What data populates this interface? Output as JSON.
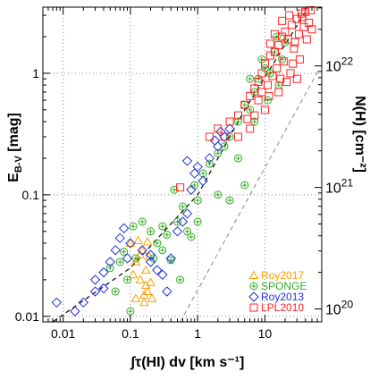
{
  "chart_data": {
    "type": "scatter",
    "xlabel": "∫τ(HI) dv [km s⁻¹]",
    "ylabel": "E_B-V [mag]",
    "ylabel_main": "E",
    "ylabel_sub": "B-V",
    "ylabel_unit": " [mag]",
    "y2label": "N(H) [cm⁻²]",
    "x_scale": "log",
    "y_scale": "log",
    "xlim": [
      0.005,
      70
    ],
    "ylim": [
      0.009,
      3.5
    ],
    "grid": true,
    "legend_placement": "lower-right",
    "x_ticks": [
      {
        "value": 0.01,
        "label": "0.01"
      },
      {
        "value": 0.1,
        "label": "0.1"
      },
      {
        "value": 1,
        "label": "1"
      },
      {
        "value": 10,
        "label": "10"
      }
    ],
    "y_ticks": [
      {
        "value": 0.01,
        "label": "0.01"
      },
      {
        "value": 0.1,
        "label": "0.1"
      },
      {
        "value": 1,
        "label": "1"
      }
    ],
    "y2_ticks": [
      {
        "value": 0.0115,
        "base": "10",
        "exp": "20"
      },
      {
        "value": 0.115,
        "base": "10",
        "exp": "21"
      },
      {
        "value": 1.15,
        "base": "10",
        "exp": "22"
      }
    ],
    "fit_lines": [
      {
        "style": "black-dashed",
        "points": [
          [
            0.007,
            0.009
          ],
          [
            0.1,
            0.025
          ],
          [
            1,
            0.1
          ],
          [
            5,
            0.5
          ],
          [
            40,
            3.2
          ]
        ]
      },
      {
        "style": "gray-dashed",
        "points": [
          [
            0.55,
            0.009
          ],
          [
            65,
            1.1
          ]
        ]
      }
    ],
    "series": [
      {
        "name": "Roy2017",
        "color": "#ff9f00",
        "marker": "triangle",
        "points": [
          [
            0.1,
            0.04
          ],
          [
            0.12,
            0.028
          ],
          [
            0.13,
            0.042
          ],
          [
            0.14,
            0.02
          ],
          [
            0.15,
            0.035
          ],
          [
            0.16,
            0.015
          ],
          [
            0.17,
            0.024
          ],
          [
            0.18,
            0.041
          ],
          [
            0.19,
            0.031
          ],
          [
            0.12,
            0.014
          ],
          [
            0.16,
            0.013
          ],
          [
            0.2,
            0.019
          ],
          [
            0.18,
            0.016
          ],
          [
            0.14,
            0.032
          ],
          [
            0.11,
            0.022
          ],
          [
            0.21,
            0.014
          ],
          [
            0.17,
            0.018
          ]
        ]
      },
      {
        "name": "SPONGE",
        "color": "#33aa22",
        "marker": "circle-plus",
        "points": [
          [
            0.05,
            0.025
          ],
          [
            0.07,
            0.028
          ],
          [
            0.09,
            0.02
          ],
          [
            0.11,
            0.055
          ],
          [
            0.12,
            0.03
          ],
          [
            0.1,
            0.011
          ],
          [
            0.25,
            0.04
          ],
          [
            0.3,
            0.055
          ],
          [
            0.3,
            0.035
          ],
          [
            0.4,
            0.029
          ],
          [
            0.5,
            0.06
          ],
          [
            0.6,
            0.08
          ],
          [
            0.7,
            0.05
          ],
          [
            0.8,
            0.045
          ],
          [
            0.9,
            0.12
          ],
          [
            1.0,
            0.09
          ],
          [
            1.0,
            0.06
          ],
          [
            1.2,
            0.15
          ],
          [
            1.5,
            0.18
          ],
          [
            2.0,
            0.22
          ],
          [
            2.5,
            0.25
          ],
          [
            3.0,
            0.3
          ],
          [
            4.0,
            0.4
          ],
          [
            5.0,
            0.55
          ],
          [
            6.0,
            0.5
          ],
          [
            7.0,
            0.7
          ],
          [
            8.0,
            0.9
          ],
          [
            10.0,
            1.1
          ],
          [
            12.0,
            1.0
          ],
          [
            14.0,
            1.5
          ],
          [
            16.0,
            0.8
          ],
          [
            18.0,
            1.3
          ],
          [
            20.0,
            1.8
          ],
          [
            5.0,
            0.12
          ],
          [
            3.0,
            0.09
          ],
          [
            9.0,
            1.3
          ],
          [
            11.0,
            0.6
          ],
          [
            4.0,
            0.2
          ],
          [
            2.0,
            0.1
          ],
          [
            0.55,
            0.02
          ],
          [
            0.15,
            0.06
          ],
          [
            0.2,
            0.05
          ],
          [
            0.22,
            0.03
          ],
          [
            0.35,
            0.047
          ],
          [
            0.06,
            0.016
          ],
          [
            0.08,
            0.034
          ],
          [
            15.0,
            2.0
          ],
          [
            7.0,
            0.4
          ],
          [
            0.45,
            0.11
          ],
          [
            6.0,
            0.9
          ]
        ]
      },
      {
        "name": "Roy2013",
        "color": "#2233dd",
        "marker": "diamond",
        "points": [
          [
            0.008,
            0.013
          ],
          [
            0.015,
            0.011
          ],
          [
            0.02,
            0.013
          ],
          [
            0.03,
            0.016
          ],
          [
            0.04,
            0.023
          ],
          [
            0.05,
            0.028
          ],
          [
            0.06,
            0.035
          ],
          [
            0.07,
            0.044
          ],
          [
            0.08,
            0.053
          ],
          [
            0.09,
            0.03
          ],
          [
            0.1,
            0.04
          ],
          [
            0.2,
            0.028
          ],
          [
            0.25,
            0.024
          ],
          [
            0.3,
            0.022
          ],
          [
            0.4,
            0.03
          ],
          [
            0.5,
            0.05
          ],
          [
            0.6,
            0.06
          ],
          [
            0.7,
            0.07
          ],
          [
            0.8,
            0.11
          ],
          [
            0.9,
            0.15
          ],
          [
            1.0,
            0.17
          ],
          [
            1.2,
            0.13
          ],
          [
            1.5,
            0.2
          ],
          [
            2.0,
            0.25
          ],
          [
            2.5,
            0.3
          ],
          [
            3.0,
            0.35
          ],
          [
            0.15,
            0.035
          ],
          [
            0.03,
            0.02
          ],
          [
            0.04,
            0.017
          ],
          [
            0.2,
            0.032
          ],
          [
            1.8,
            0.28
          ],
          [
            0.7,
            0.19
          ],
          [
            0.35,
            0.016
          ],
          [
            2.2,
            0.33
          ]
        ]
      },
      {
        "name": "LPL2010",
        "color": "#ff2222",
        "marker": "square",
        "points": [
          [
            1.5,
            0.3
          ],
          [
            2.0,
            0.35
          ],
          [
            3.0,
            0.4
          ],
          [
            4.0,
            0.45
          ],
          [
            5.0,
            0.55
          ],
          [
            6.0,
            0.65
          ],
          [
            7.0,
            0.75
          ],
          [
            8.0,
            0.85
          ],
          [
            9.0,
            1.0
          ],
          [
            10.0,
            1.2
          ],
          [
            12.0,
            1.4
          ],
          [
            14.0,
            1.5
          ],
          [
            16.0,
            1.7
          ],
          [
            18.0,
            2.0
          ],
          [
            20.0,
            2.2
          ],
          [
            25.0,
            2.5
          ],
          [
            30.0,
            2.8
          ],
          [
            35.0,
            3.1
          ],
          [
            40.0,
            3.2
          ],
          [
            45.0,
            2.6
          ],
          [
            50.0,
            2.3
          ],
          [
            22.0,
            1.9
          ],
          [
            27.0,
            1.6
          ],
          [
            33.0,
            1.3
          ],
          [
            11.0,
            0.8
          ],
          [
            13.0,
            0.95
          ],
          [
            15.0,
            1.1
          ],
          [
            17.0,
            0.9
          ],
          [
            19.0,
            1.25
          ],
          [
            9.0,
            0.7
          ],
          [
            8.0,
            0.6
          ],
          [
            7.0,
            0.45
          ],
          [
            6.0,
            0.35
          ],
          [
            10.0,
            0.5
          ],
          [
            24.0,
            1.0
          ],
          [
            28.0,
            1.8
          ],
          [
            32.0,
            2.1
          ],
          [
            38.0,
            2.4
          ],
          [
            42.0,
            1.9
          ],
          [
            16.0,
            0.7
          ],
          [
            21.0,
            0.85
          ],
          [
            26.0,
            1.2
          ],
          [
            30.0,
            0.9
          ],
          [
            12.0,
            1.75
          ],
          [
            14.0,
            2.1
          ],
          [
            18.0,
            2.7
          ],
          [
            23.0,
            3.0
          ],
          [
            0.55,
            0.115
          ],
          [
            2.5,
            0.3
          ],
          [
            4.0,
            0.3
          ],
          [
            5.5,
            0.42
          ],
          [
            11.5,
            0.65
          ],
          [
            36.0,
            2.9
          ],
          [
            48.0,
            3.3
          ]
        ]
      }
    ]
  }
}
